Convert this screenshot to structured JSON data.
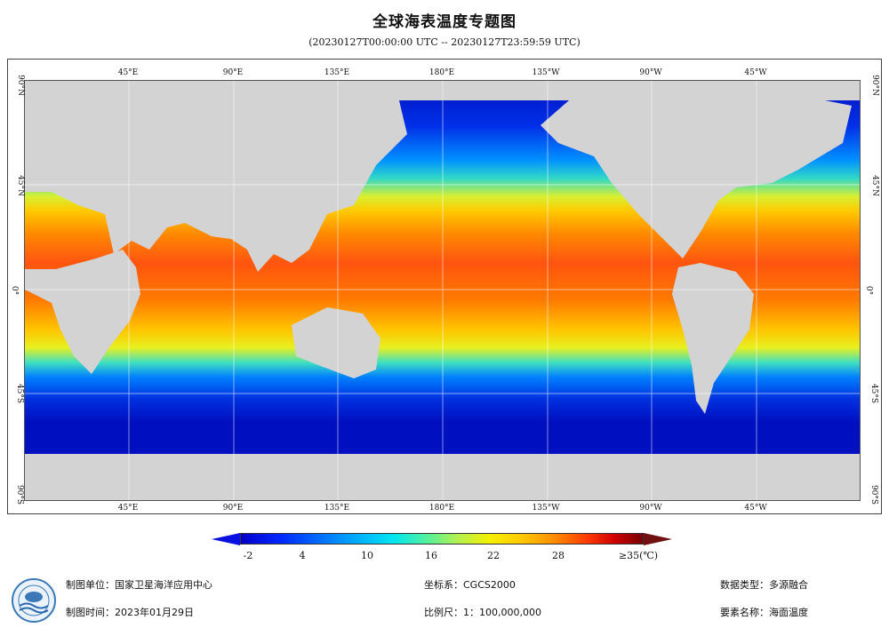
{
  "header": {
    "title": "全球海表温度专题图",
    "time_range": "(20230127T00:00:00 UTC -- 20230127T23:59:59 UTC)"
  },
  "axes": {
    "top_lon": [
      "45°E",
      "90°E",
      "135°E",
      "180°E",
      "135°W",
      "90°W",
      "45°W"
    ],
    "bottom_lon": [
      "45°E",
      "90°E",
      "135°E",
      "180°E",
      "135°W",
      "90°W",
      "45°W"
    ],
    "left_lat": [
      "90°N",
      "45°N",
      "0°",
      "45°S",
      "90°S"
    ],
    "right_lat": [
      "90°N",
      "45°N",
      "0°",
      "45°S",
      "90°S"
    ]
  },
  "colorbar": {
    "labels": [
      "-2",
      "4",
      "10",
      "16",
      "22",
      "28",
      "≥35(℃)"
    ],
    "colors": [
      "#0000c8",
      "#0070ff",
      "#00e6f0",
      "#b4f050",
      "#ffc800",
      "#ff3c00",
      "#780000"
    ]
  },
  "footer": {
    "org": "制图单位：国家卫星海洋应用中心",
    "date": "制图时间：2023年01月29日",
    "crs": "坐标系：CGCS2000",
    "scale": "比例尺：1：100,000,000",
    "data_type": "数据类型：多源融合",
    "element": "要素名称：海面温度"
  },
  "colors": {
    "land": "#d3d3d3",
    "cold": "#0a2ad8",
    "warm": "#ff4a10"
  }
}
